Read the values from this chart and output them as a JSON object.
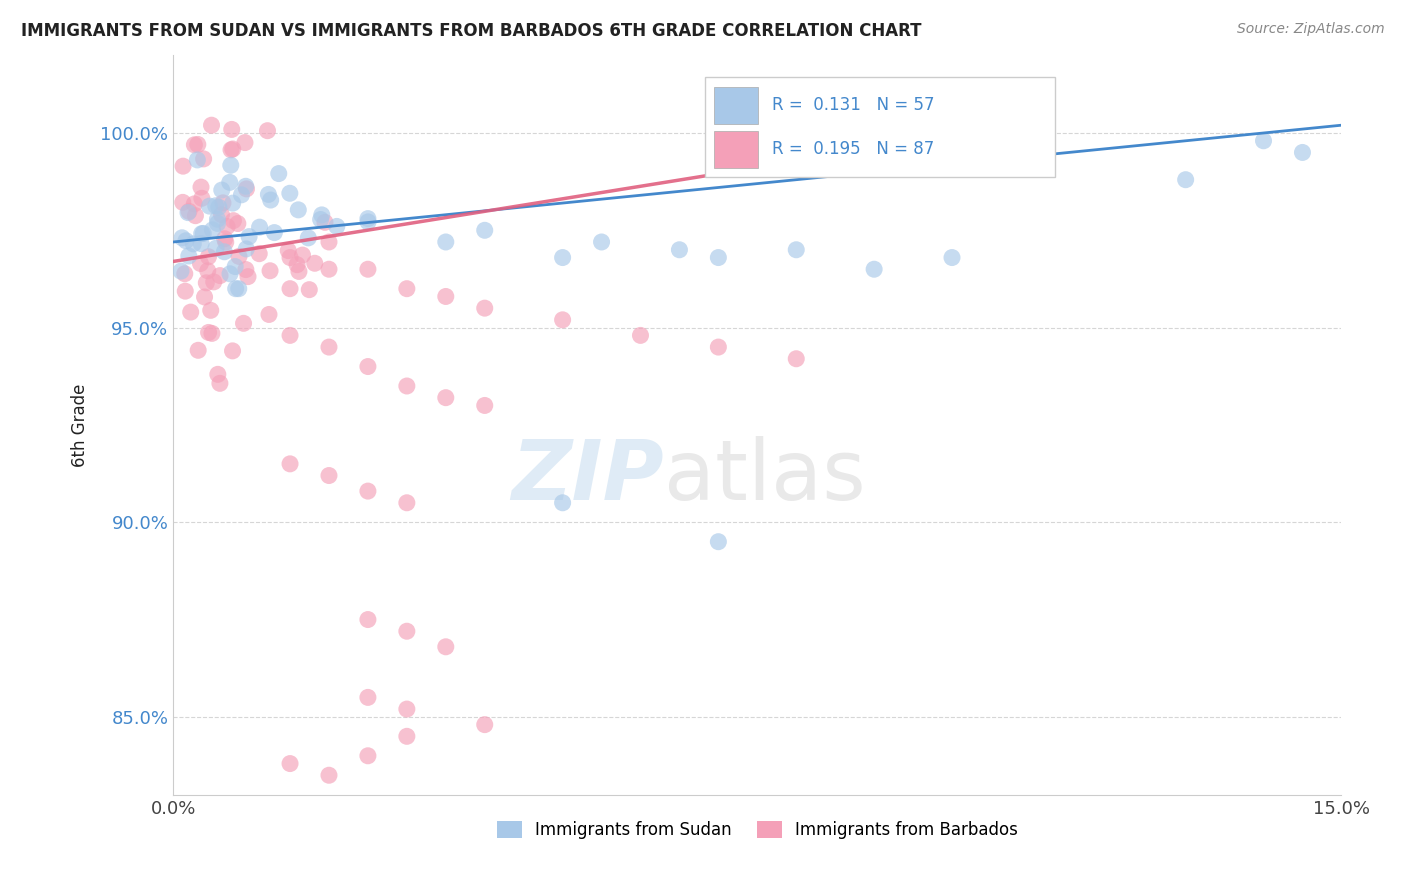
{
  "title": "IMMIGRANTS FROM SUDAN VS IMMIGRANTS FROM BARBADOS 6TH GRADE CORRELATION CHART",
  "source": "Source: ZipAtlas.com",
  "ylabel": "6th Grade",
  "xlim": [
    0.0,
    0.15
  ],
  "ylim": [
    0.83,
    1.02
  ],
  "xtick_positions": [
    0.0,
    0.15
  ],
  "xtick_labels": [
    "0.0%",
    "15.0%"
  ],
  "ytick_values": [
    0.85,
    0.9,
    0.95,
    1.0
  ],
  "ytick_labels": [
    "85.0%",
    "90.0%",
    "95.0%",
    "100.0%"
  ],
  "sudan_color": "#a8c8e8",
  "barbados_color": "#f4a0b8",
  "sudan_line_color": "#4488cc",
  "barbados_line_color": "#e06080",
  "sudan_R": 0.131,
  "sudan_N": 57,
  "barbados_R": 0.195,
  "barbados_N": 87,
  "background_color": "#ffffff",
  "grid_color": "#cccccc",
  "legend_text_color": "#4488cc",
  "title_color": "#222222",
  "source_color": "#888888",
  "ylabel_color": "#222222",
  "tick_color": "#4488cc",
  "sudan_line_x": [
    0.0,
    0.15
  ],
  "sudan_line_y": [
    0.972,
    1.002
  ],
  "barbados_line_x": [
    0.0,
    0.087
  ],
  "barbados_line_y": [
    0.967,
    0.995
  ]
}
